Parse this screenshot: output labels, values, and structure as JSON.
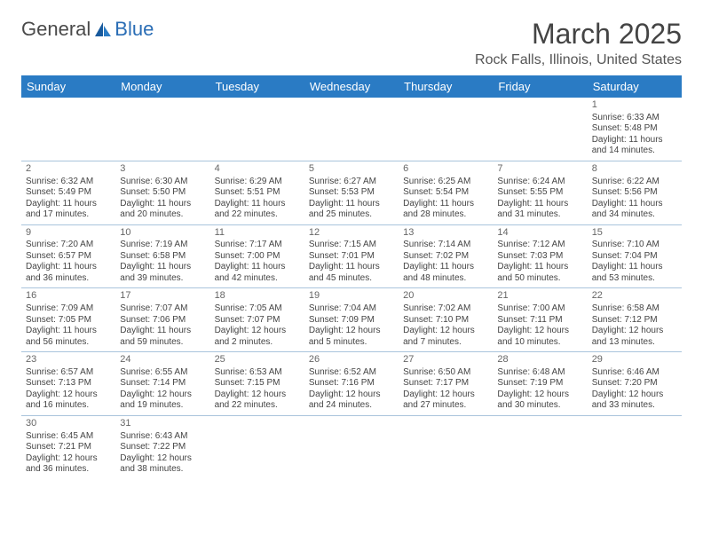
{
  "logo": {
    "text1": "General",
    "text2": "Blue"
  },
  "title": "March 2025",
  "location": "Rock Falls, Illinois, United States",
  "colors": {
    "header_bg": "#2a7bc4",
    "header_fg": "#ffffff",
    "border": "#a9c4dc",
    "text": "#444444",
    "logo_gray": "#4a4a4a",
    "logo_blue": "#2a6db5"
  },
  "day_headers": [
    "Sunday",
    "Monday",
    "Tuesday",
    "Wednesday",
    "Thursday",
    "Friday",
    "Saturday"
  ],
  "weeks": [
    [
      null,
      null,
      null,
      null,
      null,
      null,
      {
        "n": "1",
        "sr": "Sunrise: 6:33 AM",
        "ss": "Sunset: 5:48 PM",
        "dl": "Daylight: 11 hours and 14 minutes."
      }
    ],
    [
      {
        "n": "2",
        "sr": "Sunrise: 6:32 AM",
        "ss": "Sunset: 5:49 PM",
        "dl": "Daylight: 11 hours and 17 minutes."
      },
      {
        "n": "3",
        "sr": "Sunrise: 6:30 AM",
        "ss": "Sunset: 5:50 PM",
        "dl": "Daylight: 11 hours and 20 minutes."
      },
      {
        "n": "4",
        "sr": "Sunrise: 6:29 AM",
        "ss": "Sunset: 5:51 PM",
        "dl": "Daylight: 11 hours and 22 minutes."
      },
      {
        "n": "5",
        "sr": "Sunrise: 6:27 AM",
        "ss": "Sunset: 5:53 PM",
        "dl": "Daylight: 11 hours and 25 minutes."
      },
      {
        "n": "6",
        "sr": "Sunrise: 6:25 AM",
        "ss": "Sunset: 5:54 PM",
        "dl": "Daylight: 11 hours and 28 minutes."
      },
      {
        "n": "7",
        "sr": "Sunrise: 6:24 AM",
        "ss": "Sunset: 5:55 PM",
        "dl": "Daylight: 11 hours and 31 minutes."
      },
      {
        "n": "8",
        "sr": "Sunrise: 6:22 AM",
        "ss": "Sunset: 5:56 PM",
        "dl": "Daylight: 11 hours and 34 minutes."
      }
    ],
    [
      {
        "n": "9",
        "sr": "Sunrise: 7:20 AM",
        "ss": "Sunset: 6:57 PM",
        "dl": "Daylight: 11 hours and 36 minutes."
      },
      {
        "n": "10",
        "sr": "Sunrise: 7:19 AM",
        "ss": "Sunset: 6:58 PM",
        "dl": "Daylight: 11 hours and 39 minutes."
      },
      {
        "n": "11",
        "sr": "Sunrise: 7:17 AM",
        "ss": "Sunset: 7:00 PM",
        "dl": "Daylight: 11 hours and 42 minutes."
      },
      {
        "n": "12",
        "sr": "Sunrise: 7:15 AM",
        "ss": "Sunset: 7:01 PM",
        "dl": "Daylight: 11 hours and 45 minutes."
      },
      {
        "n": "13",
        "sr": "Sunrise: 7:14 AM",
        "ss": "Sunset: 7:02 PM",
        "dl": "Daylight: 11 hours and 48 minutes."
      },
      {
        "n": "14",
        "sr": "Sunrise: 7:12 AM",
        "ss": "Sunset: 7:03 PM",
        "dl": "Daylight: 11 hours and 50 minutes."
      },
      {
        "n": "15",
        "sr": "Sunrise: 7:10 AM",
        "ss": "Sunset: 7:04 PM",
        "dl": "Daylight: 11 hours and 53 minutes."
      }
    ],
    [
      {
        "n": "16",
        "sr": "Sunrise: 7:09 AM",
        "ss": "Sunset: 7:05 PM",
        "dl": "Daylight: 11 hours and 56 minutes."
      },
      {
        "n": "17",
        "sr": "Sunrise: 7:07 AM",
        "ss": "Sunset: 7:06 PM",
        "dl": "Daylight: 11 hours and 59 minutes."
      },
      {
        "n": "18",
        "sr": "Sunrise: 7:05 AM",
        "ss": "Sunset: 7:07 PM",
        "dl": "Daylight: 12 hours and 2 minutes."
      },
      {
        "n": "19",
        "sr": "Sunrise: 7:04 AM",
        "ss": "Sunset: 7:09 PM",
        "dl": "Daylight: 12 hours and 5 minutes."
      },
      {
        "n": "20",
        "sr": "Sunrise: 7:02 AM",
        "ss": "Sunset: 7:10 PM",
        "dl": "Daylight: 12 hours and 7 minutes."
      },
      {
        "n": "21",
        "sr": "Sunrise: 7:00 AM",
        "ss": "Sunset: 7:11 PM",
        "dl": "Daylight: 12 hours and 10 minutes."
      },
      {
        "n": "22",
        "sr": "Sunrise: 6:58 AM",
        "ss": "Sunset: 7:12 PM",
        "dl": "Daylight: 12 hours and 13 minutes."
      }
    ],
    [
      {
        "n": "23",
        "sr": "Sunrise: 6:57 AM",
        "ss": "Sunset: 7:13 PM",
        "dl": "Daylight: 12 hours and 16 minutes."
      },
      {
        "n": "24",
        "sr": "Sunrise: 6:55 AM",
        "ss": "Sunset: 7:14 PM",
        "dl": "Daylight: 12 hours and 19 minutes."
      },
      {
        "n": "25",
        "sr": "Sunrise: 6:53 AM",
        "ss": "Sunset: 7:15 PM",
        "dl": "Daylight: 12 hours and 22 minutes."
      },
      {
        "n": "26",
        "sr": "Sunrise: 6:52 AM",
        "ss": "Sunset: 7:16 PM",
        "dl": "Daylight: 12 hours and 24 minutes."
      },
      {
        "n": "27",
        "sr": "Sunrise: 6:50 AM",
        "ss": "Sunset: 7:17 PM",
        "dl": "Daylight: 12 hours and 27 minutes."
      },
      {
        "n": "28",
        "sr": "Sunrise: 6:48 AM",
        "ss": "Sunset: 7:19 PM",
        "dl": "Daylight: 12 hours and 30 minutes."
      },
      {
        "n": "29",
        "sr": "Sunrise: 6:46 AM",
        "ss": "Sunset: 7:20 PM",
        "dl": "Daylight: 12 hours and 33 minutes."
      }
    ],
    [
      {
        "n": "30",
        "sr": "Sunrise: 6:45 AM",
        "ss": "Sunset: 7:21 PM",
        "dl": "Daylight: 12 hours and 36 minutes."
      },
      {
        "n": "31",
        "sr": "Sunrise: 6:43 AM",
        "ss": "Sunset: 7:22 PM",
        "dl": "Daylight: 12 hours and 38 minutes."
      },
      null,
      null,
      null,
      null,
      null
    ]
  ]
}
